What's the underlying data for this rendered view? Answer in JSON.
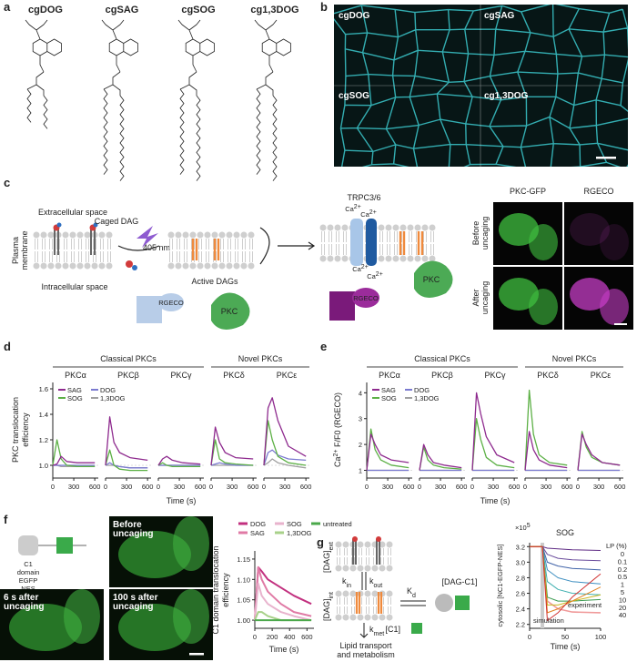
{
  "panel_labels": [
    "a",
    "b",
    "c",
    "d",
    "e",
    "f",
    "g"
  ],
  "a": {
    "molecules": [
      "cgDOG",
      "cgSAG",
      "cgSOG",
      "cg1,3DOG"
    ]
  },
  "b": {
    "labels": [
      "cgDOG",
      "cgSAG",
      "cgSOG",
      "cg1,3DOG"
    ]
  },
  "c": {
    "plasma_membrane": [
      "Plasma",
      "membrane"
    ],
    "extracellular": "Extracellular space",
    "intracellular": "Intracellular space",
    "caged_dag": "Caged DAG",
    "light": "405 nm",
    "active_dags": "Active DAGs",
    "rgeco": "RGECO",
    "pkc": "PKC",
    "channel": "TRPC3/6",
    "ion": {
      "main": "Ca",
      "sup": "2+"
    },
    "rgeco_active": "RGECO",
    "pkc_active": "PKC",
    "image_columns": [
      "PKC-GFP",
      "RGECO"
    ],
    "image_rows": [
      [
        "Before",
        "uncaging"
      ],
      [
        "After",
        "uncaging"
      ]
    ]
  },
  "d": {
    "type": "line",
    "groups": [
      "Classical PKCs",
      "Novel PKCs"
    ],
    "y_label": [
      "PKC translocation",
      "efficiency"
    ],
    "x_label": "Time (s)",
    "xlim": [
      0,
      650
    ],
    "ylim": [
      0.9,
      1.65
    ],
    "xticks": [
      0,
      300,
      600
    ],
    "yticks": [
      {
        "value": 1,
        "label": "1.0"
      },
      1.2,
      1.4,
      1.6
    ],
    "x": [
      0,
      60,
      120,
      200,
      350,
      600
    ],
    "series": [
      {
        "name": "SAG",
        "color": "#8e2a8e"
      },
      {
        "name": "DOG",
        "color": "#7a7ad0"
      },
      {
        "name": "SOG",
        "color": "#5cb045"
      },
      {
        "name": "1,3DOG",
        "color": "#a0a0a0"
      }
    ],
    "panels": [
      {
        "name": "PKCα",
        "values": [
          [
            1,
            1.01,
            1.07,
            1.03,
            1.02,
            1.02
          ],
          [
            1,
            1,
            1,
            1,
            1,
            1
          ],
          [
            1,
            1.2,
            1.05,
            1.0,
            0.99,
            0.99
          ],
          [
            1,
            1,
            0.99,
            0.99,
            0.99,
            0.99
          ]
        ]
      },
      {
        "name": "PKCβ",
        "values": [
          [
            1,
            1.38,
            1.18,
            1.1,
            1.06,
            1.04
          ],
          [
            1,
            1.02,
            1.0,
            0.99,
            0.98,
            0.98
          ],
          [
            1,
            1.12,
            1.0,
            0.97,
            0.96,
            0.96
          ],
          [
            1,
            1,
            1,
            0.99,
            0.98,
            0.98
          ]
        ]
      },
      {
        "name": "PKCγ",
        "values": [
          [
            1,
            1.05,
            1.07,
            1.04,
            1.02,
            1.01
          ],
          [
            1,
            1,
            1,
            1,
            1,
            1
          ],
          [
            1,
            1.02,
            1.0,
            0.99,
            0.99,
            0.99
          ],
          [
            1,
            1,
            1,
            1,
            1,
            1
          ]
        ]
      },
      {
        "name": "PKCδ",
        "values": [
          [
            1,
            1.3,
            1.18,
            1.1,
            1.06,
            1.05
          ],
          [
            1,
            1.01,
            1.02,
            1.01,
            1,
            1
          ],
          [
            1,
            1.2,
            1.05,
            1.02,
            1.01,
            1.0
          ],
          [
            1,
            1,
            1,
            1,
            1,
            1
          ]
        ]
      },
      {
        "name": "PKCε",
        "values": [
          [
            1,
            1.45,
            1.53,
            1.35,
            1.15,
            1.07
          ],
          [
            1,
            1.1,
            1.12,
            1.08,
            1.05,
            1.04
          ],
          [
            1,
            1.35,
            1.2,
            1.07,
            1.02,
            1.0
          ],
          [
            1,
            1.02,
            1.05,
            1.02,
            1.0,
            0.98
          ]
        ]
      }
    ]
  },
  "e": {
    "type": "line",
    "groups": [
      "Classical PKCs",
      "Novel PKCs"
    ],
    "y_label": {
      "main": "Ca",
      "sup": "2+",
      "rest": " F/F0 (RGECO)"
    },
    "x_label": "Time (s)",
    "xlim": [
      0,
      650
    ],
    "ylim": [
      0.7,
      4.4
    ],
    "xticks": [
      0,
      300,
      600
    ],
    "yticks": [
      1,
      2,
      3,
      4
    ],
    "x": [
      0,
      60,
      120,
      200,
      350,
      600
    ],
    "series": [
      {
        "name": "SAG",
        "color": "#8e2a8e"
      },
      {
        "name": "DOG",
        "color": "#7a7ad0"
      },
      {
        "name": "SOG",
        "color": "#5cb045"
      },
      {
        "name": "1,3DOG",
        "color": "#a0a0a0"
      }
    ],
    "panels": [
      {
        "name": "PKCα",
        "values": [
          [
            1,
            2.4,
            2.0,
            1.6,
            1.4,
            1.3
          ],
          [
            1,
            1,
            1,
            1,
            1,
            1
          ],
          [
            1,
            2.6,
            1.8,
            1.4,
            1.2,
            1.1
          ],
          [
            1,
            1,
            1,
            1,
            1,
            1
          ]
        ]
      },
      {
        "name": "PKCβ",
        "values": [
          [
            1,
            2.0,
            1.6,
            1.3,
            1.2,
            1.1
          ],
          [
            1,
            1,
            1,
            1,
            1,
            1
          ],
          [
            1,
            1.9,
            1.4,
            1.2,
            1.1,
            1.05
          ],
          [
            1,
            1,
            1,
            1,
            1,
            1
          ]
        ]
      },
      {
        "name": "PKCγ",
        "values": [
          [
            1,
            4.0,
            3.2,
            2.3,
            1.6,
            1.3
          ],
          [
            1,
            1,
            1,
            1,
            1,
            1
          ],
          [
            1,
            3.0,
            2.2,
            1.5,
            1.2,
            1.1
          ],
          [
            1,
            1,
            1,
            1,
            1,
            1
          ]
        ]
      },
      {
        "name": "PKCδ",
        "values": [
          [
            1,
            2.5,
            1.8,
            1.4,
            1.2,
            1.1
          ],
          [
            1,
            1,
            1,
            1,
            1,
            1
          ],
          [
            1,
            4.1,
            2.4,
            1.6,
            1.3,
            1.2
          ],
          [
            1,
            1,
            1,
            1,
            1,
            1
          ]
        ]
      },
      {
        "name": "PKCε",
        "values": [
          [
            1,
            2.4,
            2.0,
            1.6,
            1.3,
            1.2
          ],
          [
            1,
            1,
            1,
            1,
            1,
            1
          ],
          [
            1,
            2.5,
            1.9,
            1.5,
            1.3,
            1.2
          ],
          [
            1,
            1,
            1,
            1,
            1,
            1
          ]
        ]
      }
    ]
  },
  "f": {
    "schematic": [
      "C1",
      "domain",
      "EGFP",
      "NES"
    ],
    "images": [
      [
        "Before",
        "uncaging"
      ],
      [
        "6 s after",
        "uncaging"
      ],
      [
        "100 s after",
        "uncaging"
      ]
    ],
    "chart": {
      "type": "line",
      "y_label": [
        "C1 domain translocation",
        "efficiency"
      ],
      "x_label": "Time (s)",
      "xlim": [
        0,
        680
      ],
      "ylim": [
        0.98,
        1.17
      ],
      "xticks": [
        0,
        200,
        400,
        600
      ],
      "yticks": [
        {
          "value": 1,
          "label": "1.00"
        },
        1.05,
        {
          "value": 1.1,
          "label": "1.10"
        },
        1.15
      ],
      "x": [
        0,
        40,
        80,
        150,
        300,
        450,
        650
      ],
      "series": [
        {
          "name": "DOG",
          "color": "#c2307f",
          "values": [
            1,
            1.13,
            1.12,
            1.1,
            1.08,
            1.06,
            1.04
          ]
        },
        {
          "name": "SAG",
          "color": "#e07aa5",
          "values": [
            1,
            1.13,
            1.1,
            1.07,
            1.04,
            1.02,
            1.01
          ]
        },
        {
          "name": "SOG",
          "color": "#e8b3cd",
          "values": [
            1,
            1.09,
            1.06,
            1.04,
            1.02,
            1.01,
            1.0
          ]
        },
        {
          "name": "1,3DOG",
          "color": "#a8d18a",
          "values": [
            1,
            1.02,
            1.02,
            1.01,
            1.0,
            1.0,
            1.0
          ]
        },
        {
          "name": "untreated",
          "color": "#4aa84a",
          "values": [
            1,
            1.0,
            1.0,
            1.0,
            1.0,
            1.0,
            1.0
          ]
        }
      ]
    }
  },
  "g": {
    "dag_ext": {
      "main": "[DAG]",
      "sub": "ext"
    },
    "dag_int": {
      "main": "[DAG]",
      "sub": "int"
    },
    "k_in": {
      "main": "k",
      "sub": "in"
    },
    "k_out": {
      "main": "k",
      "sub": "out"
    },
    "k_met": {
      "main": "k",
      "sub": "met"
    },
    "k_d": {
      "main": "K",
      "sub": "d"
    },
    "complex": "[DAG-C1]",
    "c1": "[C1]",
    "metabolism": [
      "Lipid transport",
      "and metabolism"
    ],
    "chart": {
      "type": "line",
      "title": "SOG",
      "scale": {
        "main": "×10",
        "sup": "5"
      },
      "y_label": "cytosolic [NC1-EGFP-NES]",
      "x_label": "Time (s)",
      "xlim": [
        0,
        100
      ],
      "ylim": [
        2.15,
        3.25
      ],
      "xticks": [
        0,
        50,
        100
      ],
      "yticks": [
        2.2,
        2.4,
        2.6,
        2.8,
        {
          "value": 3,
          "label": "3.0"
        },
        3.2
      ],
      "legend_title": "LP (%)",
      "simulation_label": "simulation",
      "x": [
        0,
        18,
        25,
        40,
        60,
        100
      ],
      "series": [
        {
          "name": "0",
          "color": "#5e2a84",
          "values": [
            3.2,
            3.2,
            3.18,
            3.17,
            3.16,
            3.15
          ]
        },
        {
          "name": "0.1",
          "color": "#6a4c9c",
          "values": [
            3.2,
            3.2,
            3.1,
            3.05,
            3.03,
            3.02
          ]
        },
        {
          "name": "0.2",
          "color": "#4063a8",
          "values": [
            3.2,
            3.2,
            3.0,
            2.95,
            2.92,
            2.9
          ]
        },
        {
          "name": "0.5",
          "color": "#3c8ec0",
          "values": [
            3.2,
            3.2,
            2.9,
            2.8,
            2.75,
            2.72
          ]
        },
        {
          "name": "1",
          "color": "#40b0b0",
          "values": [
            3.2,
            3.2,
            2.75,
            2.65,
            2.6,
            2.58
          ]
        },
        {
          "name": "5",
          "color": "#3a9a50",
          "values": [
            3.2,
            3.2,
            2.55,
            2.5,
            2.5,
            2.52
          ]
        },
        {
          "name": "10",
          "color": "#c8b820",
          "values": [
            3.2,
            3.2,
            2.45,
            2.45,
            2.5,
            2.58
          ]
        },
        {
          "name": "20",
          "color": "#e08020",
          "values": [
            3.2,
            3.2,
            2.35,
            2.4,
            2.5,
            2.68
          ]
        },
        {
          "name": "40",
          "color": "#d03030",
          "values": [
            3.2,
            3.2,
            2.25,
            2.35,
            2.55,
            2.85
          ]
        }
      ],
      "experiment": {
        "name": "experiment",
        "color": "#f09a9a",
        "values": [
          3.2,
          3.2,
          2.5,
          2.4,
          2.36,
          2.35
        ]
      }
    }
  }
}
